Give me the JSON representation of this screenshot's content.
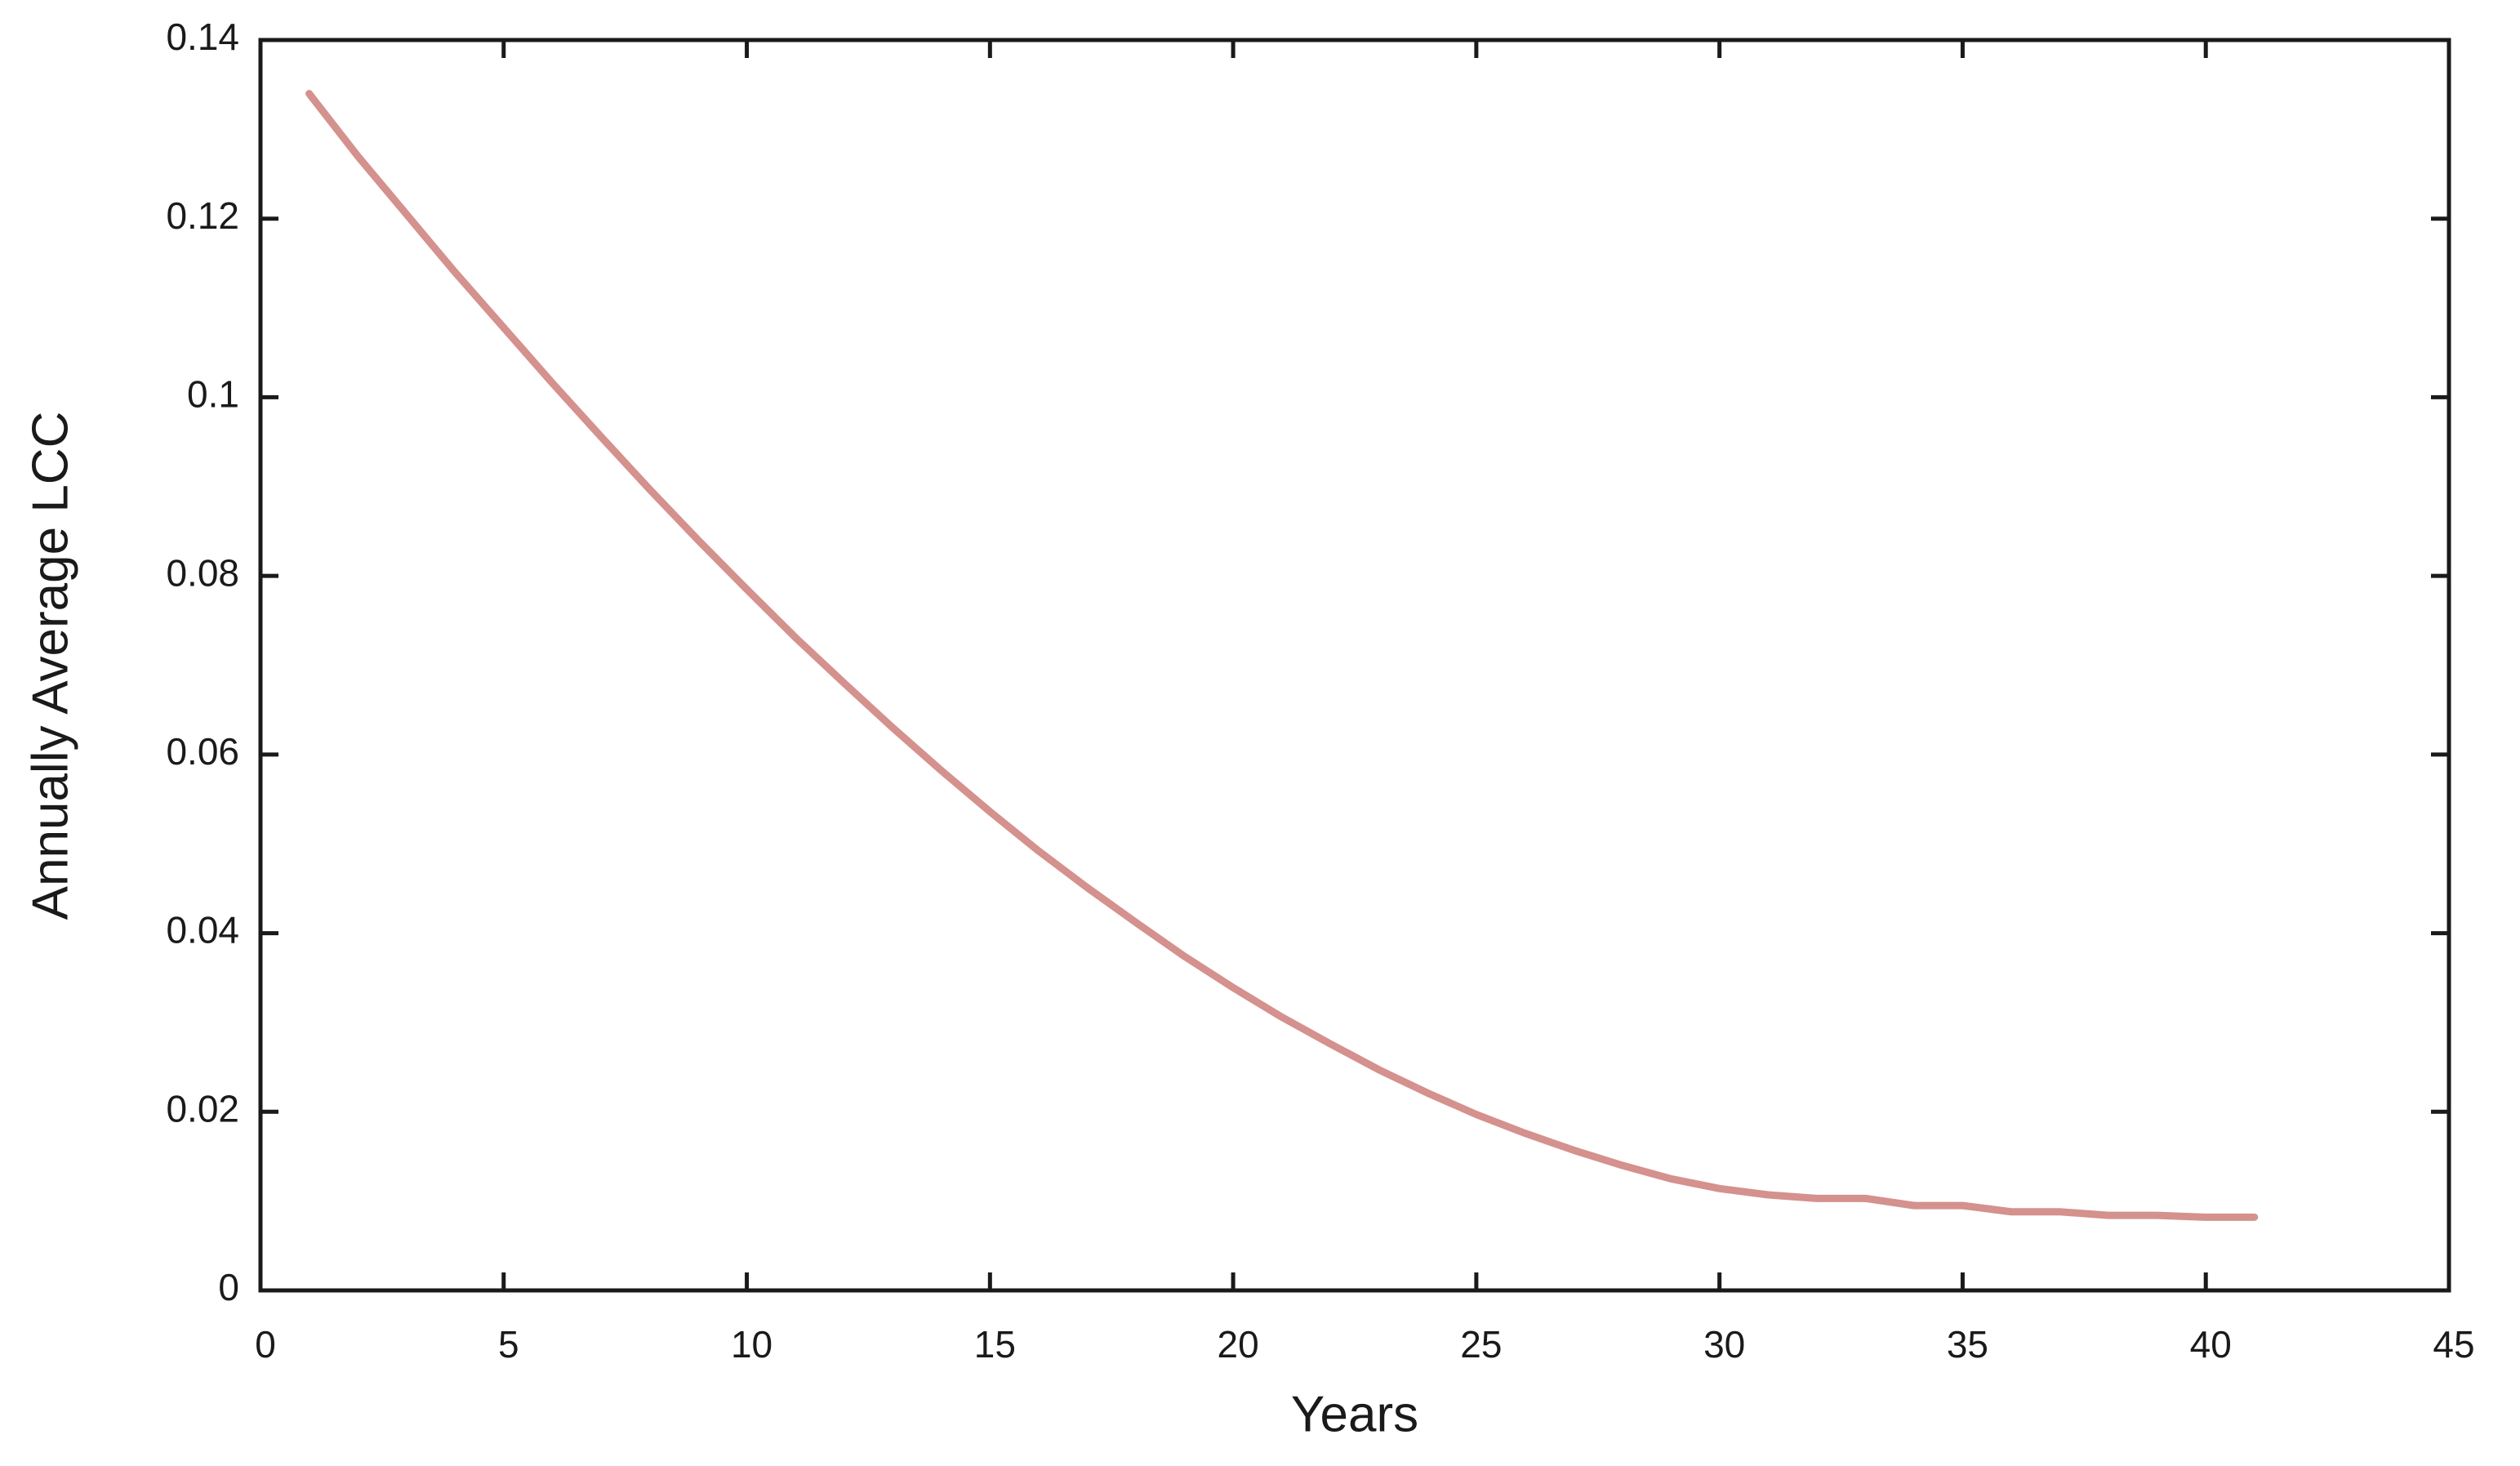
{
  "chart_data": {
    "type": "line",
    "xlabel": "Years",
    "ylabel": "Annually Average LCC",
    "x": [
      1,
      2,
      3,
      4,
      5,
      6,
      7,
      8,
      9,
      10,
      11,
      12,
      13,
      14,
      15,
      16,
      17,
      18,
      19,
      20,
      21,
      22,
      23,
      24,
      25,
      26,
      27,
      28,
      29,
      30,
      31,
      32,
      33,
      34,
      35,
      36,
      37,
      38,
      39,
      40,
      41
    ],
    "series": [
      {
        "color": "#d4918d",
        "values": [
          0.134,
          0.127,
          0.1205,
          0.114,
          0.1078,
          0.1016,
          0.0956,
          0.0897,
          0.084,
          0.0785,
          0.0731,
          0.068,
          0.063,
          0.0582,
          0.0536,
          0.0492,
          0.0451,
          0.0412,
          0.0374,
          0.0339,
          0.0306,
          0.0276,
          0.0247,
          0.0221,
          0.0197,
          0.0176,
          0.0157,
          0.014,
          0.0125,
          0.0114,
          0.0107,
          0.0103,
          0.0103,
          0.0095,
          0.0095,
          0.0088,
          0.0088,
          0.0084,
          0.0084,
          0.0082,
          0.0082
        ]
      }
    ],
    "xlim": [
      0,
      45
    ],
    "xticks": [
      0,
      5,
      10,
      15,
      20,
      25,
      30,
      35,
      40,
      45
    ],
    "ylim": [
      0,
      0.14
    ],
    "yticks": [
      0,
      0.02,
      0.04,
      0.06,
      0.08,
      0.1,
      0.12,
      0.14
    ],
    "grid": false
  }
}
